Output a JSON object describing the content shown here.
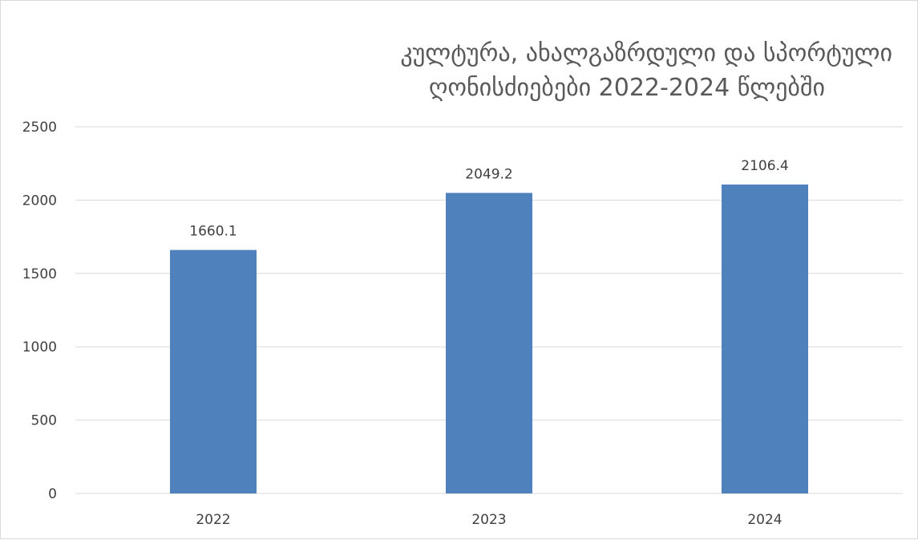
{
  "chart_data": {
    "type": "bar",
    "title_lines": [
      "კულტურა, ახალგაზრდული და სპორტული",
      "ღონისძიებები 2022-2024 წლებში"
    ],
    "categories": [
      "2022",
      "2023",
      "2024"
    ],
    "series": [
      {
        "values": [
          1660.1,
          2049.2,
          2106.4
        ]
      }
    ],
    "data_labels": [
      "1660.1",
      "2049.2",
      "2106.4"
    ],
    "y_ticks": [
      "0",
      "500",
      "1000",
      "1500",
      "2000",
      "2500"
    ],
    "ylim": [
      0,
      2500
    ],
    "grid": true,
    "legend": "none",
    "bar_color": "#4f81bd",
    "grid_color": "#d9d9d9"
  }
}
